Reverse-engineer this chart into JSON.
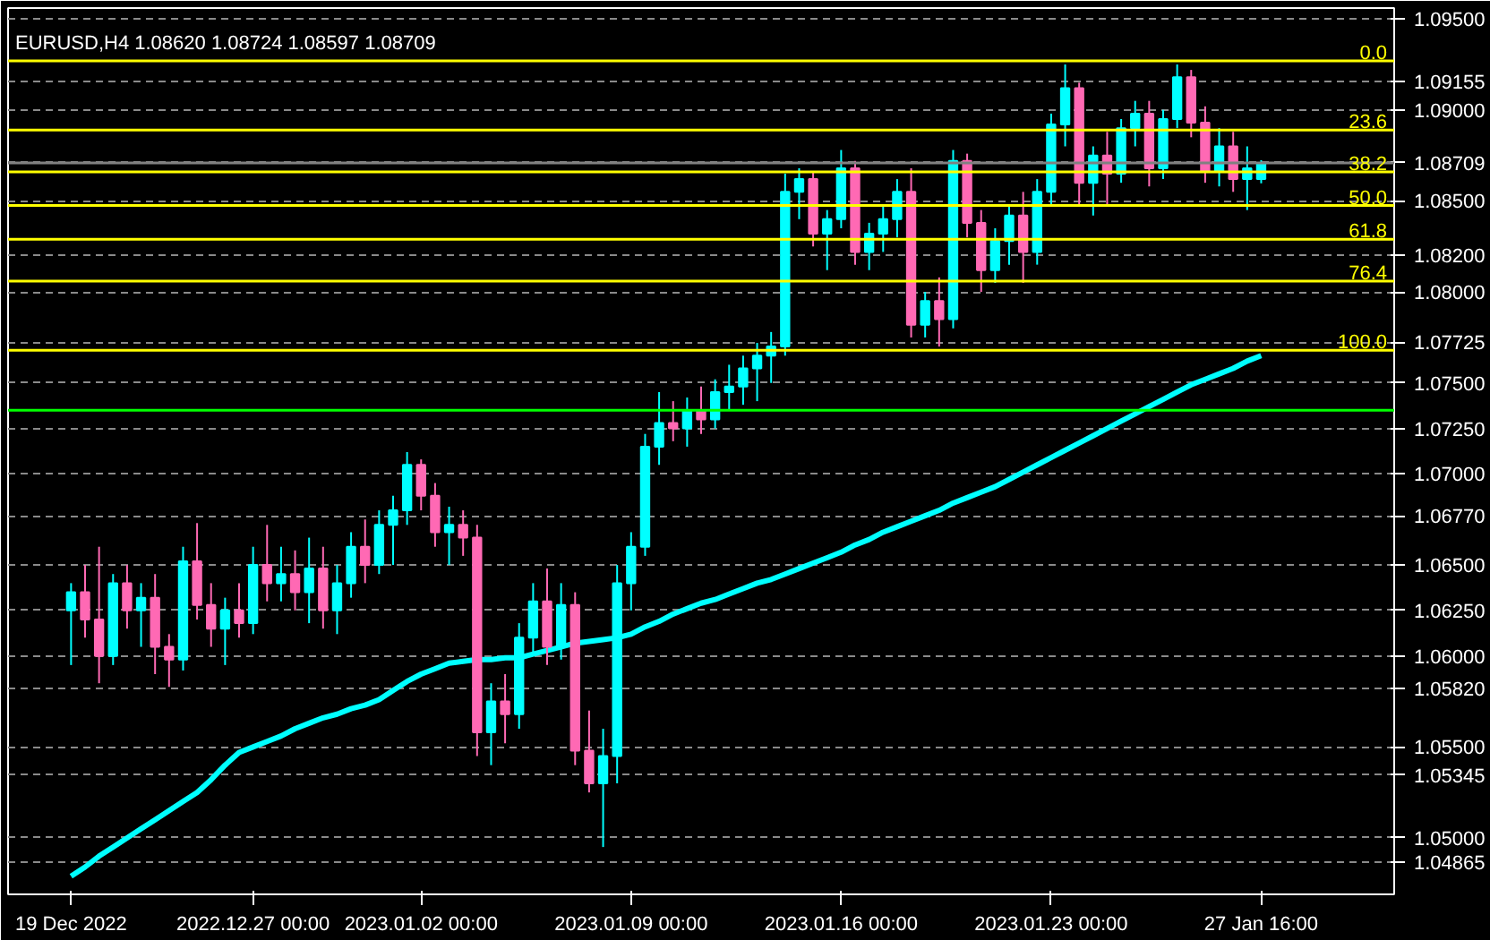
{
  "chart_data": {
    "type": "candlestick",
    "title": "EURUSD,H4  1.08620 1.08724 1.08597 1.08709",
    "ylim": [
      1.0469,
      1.0956
    ],
    "categories": [
      "19 Dec 2022",
      null,
      null,
      null,
      null,
      null,
      null,
      null,
      null,
      null,
      null,
      null,
      null,
      "2022.12.27 00:00",
      null,
      null,
      null,
      null,
      null,
      null,
      null,
      null,
      null,
      null,
      null,
      "2023.01.02 00:00",
      null,
      null,
      null,
      null,
      null,
      null,
      null,
      null,
      null,
      null,
      null,
      null,
      null,
      null,
      "2023.01.09 00:00",
      null,
      null,
      null,
      null,
      null,
      null,
      null,
      null,
      null,
      null,
      null,
      null,
      null,
      null,
      "2023.01.16 00:00",
      null,
      null,
      null,
      null,
      null,
      null,
      null,
      null,
      null,
      null,
      null,
      null,
      null,
      null,
      "2023.01.23 00:00",
      null,
      null,
      null,
      null,
      null,
      null,
      null,
      null,
      null,
      null,
      null,
      null,
      null,
      null,
      "27 Jan 16:00",
      null,
      null,
      null,
      null,
      null,
      null,
      null,
      null,
      null
    ],
    "yticks": [
      {
        "value": 1.095,
        "label": "1.09500"
      },
      {
        "value": 1.09155,
        "label": "1.09155"
      },
      {
        "value": 1.09,
        "label": "1.09000"
      },
      {
        "value": 1.08709,
        "label": "1.08709"
      },
      {
        "value": 1.085,
        "label": "1.08500"
      },
      {
        "value": 1.082,
        "label": "1.08200"
      },
      {
        "value": 1.08,
        "label": "1.08000"
      },
      {
        "value": 1.07725,
        "label": "1.07725"
      },
      {
        "value": 1.075,
        "label": "1.07500"
      },
      {
        "value": 1.0725,
        "label": "1.07250"
      },
      {
        "value": 1.07,
        "label": "1.07000"
      },
      {
        "value": 1.0677,
        "label": "1.06770"
      },
      {
        "value": 1.065,
        "label": "1.06500"
      },
      {
        "value": 1.0625,
        "label": "1.06250"
      },
      {
        "value": 1.06,
        "label": "1.06000"
      },
      {
        "value": 1.0582,
        "label": "1.05820"
      },
      {
        "value": 1.055,
        "label": "1.05500"
      },
      {
        "value": 1.05345,
        "label": "1.05345"
      },
      {
        "value": 1.05,
        "label": "1.05000"
      },
      {
        "value": 1.04865,
        "label": "1.04865"
      }
    ],
    "grid": "y",
    "series": [
      {
        "type": "line",
        "color": "#00ffff",
        "values": [
          1.0479,
          1.0484,
          1.049,
          1.0495,
          1.05,
          1.0505,
          1.051,
          1.0515,
          1.052,
          1.0525,
          1.0532,
          1.054,
          1.0547,
          1.055,
          1.0553,
          1.0556,
          1.056,
          1.0563,
          1.0566,
          1.0568,
          1.0571,
          1.0573,
          1.0576,
          1.0581,
          1.0586,
          1.059,
          1.0593,
          1.0596,
          1.0597,
          1.0598,
          1.0598,
          1.0599,
          1.0599,
          1.0601,
          1.0603,
          1.0605,
          1.0607,
          1.0608,
          1.0609,
          1.061,
          1.0612,
          1.0616,
          1.0619,
          1.0623,
          1.0626,
          1.0629,
          1.0631,
          1.0634,
          1.0637,
          1.064,
          1.0642,
          1.0645,
          1.0648,
          1.0651,
          1.0654,
          1.0657,
          1.0661,
          1.0664,
          1.0668,
          1.0671,
          1.0674,
          1.0677,
          1.068,
          1.0684,
          1.0687,
          1.069,
          1.0693,
          1.0697,
          1.0701,
          1.0705,
          1.0709,
          1.0713,
          1.0717,
          1.0721,
          1.0725,
          1.0729,
          1.0733,
          1.0737,
          1.0741,
          1.0745,
          1.0749,
          1.0752,
          1.0755,
          1.0758,
          1.0762,
          1.0765,
          null,
          null,
          null,
          null,
          null,
          null,
          null,
          null,
          null
        ]
      },
      {
        "ohlc": [
          [
            1.0625,
            1.064,
            1.0595,
            1.0635
          ],
          [
            1.0635,
            1.065,
            1.061,
            1.062
          ],
          [
            1.062,
            1.066,
            1.0585,
            1.06
          ],
          [
            1.06,
            1.0645,
            1.0595,
            1.064
          ],
          [
            1.064,
            1.065,
            1.0615,
            1.0625
          ],
          [
            1.0625,
            1.064,
            1.0605,
            1.0632
          ],
          [
            1.0632,
            1.0645,
            1.059,
            1.0605
          ],
          [
            1.0605,
            1.0612,
            1.0583,
            1.0598
          ],
          [
            1.0598,
            1.066,
            1.0592,
            1.0652
          ],
          [
            1.0652,
            1.0673,
            1.062,
            1.0628
          ],
          [
            1.0628,
            1.064,
            1.0605,
            1.0615
          ],
          [
            1.0615,
            1.0632,
            1.0595,
            1.0625
          ],
          [
            1.0625,
            1.064,
            1.061,
            1.0618
          ],
          [
            1.0618,
            1.066,
            1.0612,
            1.065
          ],
          [
            1.065,
            1.0672,
            1.063,
            1.064
          ],
          [
            1.064,
            1.066,
            1.063,
            1.0645
          ],
          [
            1.0645,
            1.0658,
            1.0625,
            1.0635
          ],
          [
            1.0635,
            1.0665,
            1.0618,
            1.0648
          ],
          [
            1.0648,
            1.066,
            1.0615,
            1.0625
          ],
          [
            1.0625,
            1.065,
            1.0612,
            1.064
          ],
          [
            1.064,
            1.0668,
            1.0632,
            1.066
          ],
          [
            1.066,
            1.0675,
            1.064,
            1.065
          ],
          [
            1.065,
            1.068,
            1.0645,
            1.0672
          ],
          [
            1.0672,
            1.0688,
            1.065,
            1.068
          ],
          [
            1.068,
            1.0712,
            1.0672,
            1.0705
          ],
          [
            1.0705,
            1.0708,
            1.068,
            1.0688
          ],
          [
            1.0688,
            1.0695,
            1.066,
            1.0668
          ],
          [
            1.0668,
            1.0682,
            1.065,
            1.0672
          ],
          [
            1.0672,
            1.068,
            1.0655,
            1.0665
          ],
          [
            1.0665,
            1.0672,
            1.0545,
            1.0558
          ],
          [
            1.0558,
            1.0585,
            1.054,
            1.0575
          ],
          [
            1.0575,
            1.059,
            1.0552,
            1.0568
          ],
          [
            1.0568,
            1.0618,
            1.056,
            1.061
          ],
          [
            1.061,
            1.064,
            1.06,
            1.063
          ],
          [
            1.063,
            1.0648,
            1.0595,
            1.0605
          ],
          [
            1.0605,
            1.064,
            1.0598,
            1.0628
          ],
          [
            1.0628,
            1.0635,
            1.054,
            1.0548
          ],
          [
            1.0548,
            1.057,
            1.0525,
            1.053
          ],
          [
            1.053,
            1.056,
            1.0495,
            1.0545
          ],
          [
            1.0545,
            1.065,
            1.053,
            1.064
          ],
          [
            1.064,
            1.0668,
            1.0625,
            1.066
          ],
          [
            1.066,
            1.0722,
            1.0655,
            1.0715
          ],
          [
            1.0715,
            1.0745,
            1.0705,
            1.0728
          ],
          [
            1.0728,
            1.074,
            1.0718,
            1.0725
          ],
          [
            1.0725,
            1.0742,
            1.0715,
            1.0735
          ],
          [
            1.0735,
            1.0748,
            1.0722,
            1.073
          ],
          [
            1.073,
            1.0752,
            1.0725,
            1.0745
          ],
          [
            1.0745,
            1.076,
            1.0735,
            1.0748
          ],
          [
            1.0748,
            1.0765,
            1.0738,
            1.0758
          ],
          [
            1.0758,
            1.0772,
            1.074,
            1.0765
          ],
          [
            1.0765,
            1.0778,
            1.075,
            1.077
          ],
          [
            1.077,
            1.0865,
            1.0765,
            1.0855
          ],
          [
            1.0855,
            1.0868,
            1.084,
            1.0862
          ],
          [
            1.0862,
            1.0866,
            1.0825,
            1.0832
          ],
          [
            1.0832,
            1.0845,
            1.0812,
            1.084
          ],
          [
            1.084,
            1.0878,
            1.0835,
            1.0868
          ],
          [
            1.0868,
            1.0872,
            1.0815,
            1.0822
          ],
          [
            1.0822,
            1.0838,
            1.0812,
            1.0832
          ],
          [
            1.0832,
            1.0848,
            1.0822,
            1.084
          ],
          [
            1.084,
            1.0862,
            1.083,
            1.0855
          ],
          [
            1.0855,
            1.0868,
            1.0775,
            1.0782
          ],
          [
            1.0782,
            1.08,
            1.0775,
            1.0795
          ],
          [
            1.0795,
            1.0808,
            1.077,
            1.0785
          ],
          [
            1.0785,
            1.0878,
            1.078,
            1.0872
          ],
          [
            1.0872,
            1.0876,
            1.083,
            1.0838
          ],
          [
            1.0838,
            1.0845,
            1.08,
            1.0812
          ],
          [
            1.0812,
            1.0835,
            1.0805,
            1.0828
          ],
          [
            1.0828,
            1.0848,
            1.0815,
            1.0842
          ],
          [
            1.0842,
            1.0855,
            1.0805,
            1.0822
          ],
          [
            1.0822,
            1.0862,
            1.0815,
            1.0855
          ],
          [
            1.0855,
            1.0898,
            1.0848,
            1.0892
          ],
          [
            1.0892,
            1.0925,
            1.088,
            1.0912
          ],
          [
            1.0912,
            1.0915,
            1.0848,
            1.086
          ],
          [
            1.086,
            1.088,
            1.0842,
            1.0875
          ],
          [
            1.0875,
            1.0888,
            1.0848,
            1.0865
          ],
          [
            1.0865,
            1.0895,
            1.086,
            1.089
          ],
          [
            1.089,
            1.0905,
            1.088,
            1.0898
          ],
          [
            1.0898,
            1.0905,
            1.0858,
            1.0868
          ],
          [
            1.0868,
            1.09,
            1.0862,
            1.0895
          ],
          [
            1.0895,
            1.0925,
            1.089,
            1.0918
          ],
          [
            1.0918,
            1.0922,
            1.0885,
            1.0893
          ],
          [
            1.0893,
            1.0902,
            1.086,
            1.0866
          ],
          [
            1.0866,
            1.089,
            1.0858,
            1.088
          ],
          [
            1.088,
            1.0888,
            1.0855,
            1.0862
          ],
          [
            1.0862,
            1.088,
            1.0845,
            1.0868
          ],
          [
            1.0862,
            1.08724,
            1.08597,
            1.08709
          ],
          null,
          null,
          null,
          null,
          null,
          null,
          null,
          null,
          null
        ],
        "colors": [
          "#00ffff",
          "#ff69b4",
          "#ff69b4",
          "#00ffff",
          "#ff69b4",
          "#00ffff",
          "#ff69b4",
          "#ff69b4",
          "#00ffff",
          "#ff69b4",
          "#ff69b4",
          "#00ffff",
          "#ff69b4",
          "#00ffff",
          "#ff69b4",
          "#00ffff",
          "#ff69b4",
          "#00ffff",
          "#ff69b4",
          "#00ffff",
          "#00ffff",
          "#ff69b4",
          "#00ffff",
          "#00ffff",
          "#00ffff",
          "#ff69b4",
          "#ff69b4",
          "#00ffff",
          "#ff69b4",
          "#ff69b4",
          "#00ffff",
          "#ff69b4",
          "#00ffff",
          "#00ffff",
          "#ff69b4",
          "#00ffff",
          "#ff69b4",
          "#ff69b4",
          "#00ffff",
          "#00ffff",
          "#00ffff",
          "#00ffff",
          "#00ffff",
          "#ff69b4",
          "#00ffff",
          "#ff69b4",
          "#00ffff",
          "#00ffff",
          "#00ffff",
          "#00ffff",
          "#00ffff",
          "#00ffff",
          "#00ffff",
          "#ff69b4",
          "#00ffff",
          "#00ffff",
          "#ff69b4",
          "#00ffff",
          "#00ffff",
          "#00ffff",
          "#ff69b4",
          "#00ffff",
          "#ff69b4",
          "#00ffff",
          "#ff69b4",
          "#ff69b4",
          "#00ffff",
          "#00ffff",
          "#ff69b4",
          "#00ffff",
          "#00ffff",
          "#00ffff",
          "#ff69b4",
          "#00ffff",
          "#ff69b4",
          "#00ffff",
          "#00ffff",
          "#ff69b4",
          "#00ffff",
          "#00ffff",
          "#ff69b4",
          "#ff69b4",
          "#00ffff",
          "#ff69b4",
          "#00ffff",
          "#00ffff",
          null,
          null,
          null,
          null,
          null,
          null,
          null,
          null,
          null
        ]
      }
    ],
    "ref_lines": [
      {
        "axis": "y",
        "value": 1.0735,
        "color": "#00ff00"
      },
      {
        "axis": "y",
        "value": 1.08709,
        "color": "#808080"
      },
      {
        "axis": "y",
        "value": 1.0927,
        "color": "#ffff00"
      },
      {
        "axis": "y",
        "value": 1.0889,
        "color": "#ffff00"
      },
      {
        "axis": "y",
        "value": 1.0866,
        "color": "#ffff00"
      },
      {
        "axis": "y",
        "value": 1.08475,
        "color": "#ffff00"
      },
      {
        "axis": "y",
        "value": 1.0829,
        "color": "#ffff00"
      },
      {
        "axis": "y",
        "value": 1.0806,
        "color": "#ffff00"
      },
      {
        "axis": "y",
        "value": 1.0768,
        "color": "#ffff00"
      }
    ],
    "annotations": [
      {
        "text": "0.0",
        "y": 1.0927
      },
      {
        "text": "23.6",
        "y": 1.0889
      },
      {
        "text": "38.2",
        "y": 1.0866
      },
      {
        "text": "50.0",
        "y": 1.08475
      },
      {
        "text": "61.8",
        "y": 1.0829
      },
      {
        "text": "76.4",
        "y": 1.0806
      },
      {
        "text": "100.0",
        "y": 1.0768
      }
    ]
  }
}
